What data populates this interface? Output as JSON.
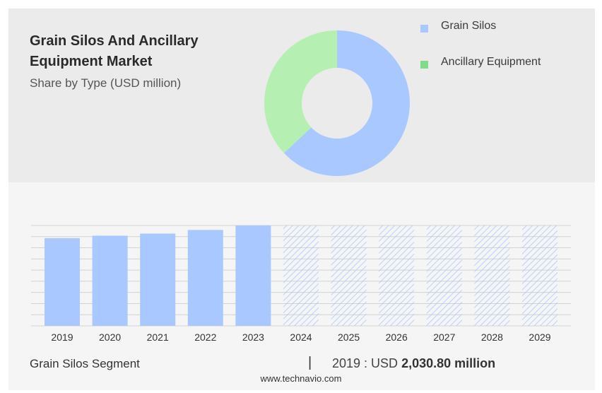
{
  "header": {
    "title": "Grain Silos And Ancillary Equipment Market",
    "subtitle": "Share by Type (USD million)"
  },
  "colors": {
    "grain_silos": "#a9c8ff",
    "ancillary_equipment": "#b5f0b2",
    "ancillary_legend": "#7fdc8a",
    "hatch": "#a9c8ff",
    "grid": "#d2d2d2"
  },
  "chart_data": [
    {
      "type": "pie",
      "style": "donut",
      "title": "Share by Type (USD million)",
      "slices": [
        {
          "label": "Grain Silos",
          "value": 63
        },
        {
          "label": "Ancillary Equipment",
          "value": 37
        }
      ],
      "legend": "right"
    },
    {
      "type": "bar",
      "categories": [
        "2019",
        "2020",
        "2021",
        "2022",
        "2023",
        "2024",
        "2025",
        "2026",
        "2027",
        "2028",
        "2029"
      ],
      "values": [
        2030.8,
        2086,
        2136,
        2220,
        2323,
        2323,
        2323,
        2323,
        2323,
        2323,
        2323
      ],
      "forecast_from": "2024",
      "ylim": [
        0,
        2323
      ],
      "grid": true
    }
  ],
  "footer": {
    "segment": "Grain Silos Segment",
    "separator": "|",
    "value_prefix": "2019 : USD",
    "value_bold": "2,030.80 million",
    "website": "www.technavio.com"
  }
}
